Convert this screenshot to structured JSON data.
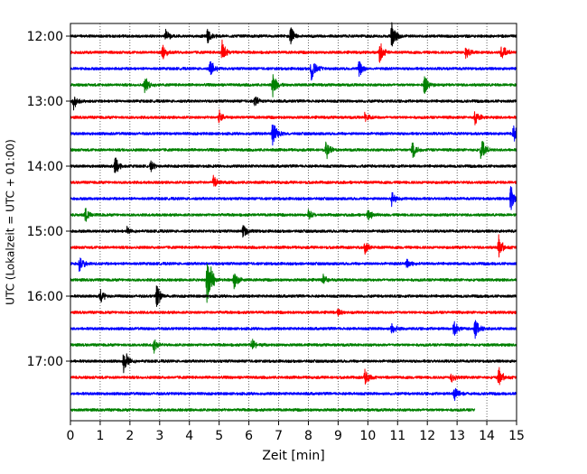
{
  "chart_data": {
    "type": "line",
    "subtype": "helicorder (seismogram drum plot)",
    "title": "",
    "xlabel": "Zeit  [min]",
    "ylabel": "UTC (Lokalzeit = UTC + 01:00)",
    "xlim": [
      0,
      15
    ],
    "x_ticks": [
      "0",
      "1",
      "2",
      "3",
      "4",
      "5",
      "6",
      "7",
      "8",
      "9",
      "10",
      "11",
      "12",
      "13",
      "14",
      "15"
    ],
    "y_tick_labels": [
      "12:00",
      "13:00",
      "14:00",
      "15:00",
      "16:00",
      "17:00"
    ],
    "trace_colors": [
      "#000000",
      "#ff0000",
      "#0000ff",
      "#008000"
    ],
    "trace_minutes": 15,
    "grid": "vertical dotted lines at each minute",
    "rows": [
      {
        "start": "12:00",
        "color": "#000000",
        "events": [
          {
            "t": 3.2,
            "a": 0.5
          },
          {
            "t": 4.6,
            "a": 0.6
          },
          {
            "t": 7.4,
            "a": 0.7
          },
          {
            "t": 10.8,
            "a": 1.0
          }
        ]
      },
      {
        "start": "12:15",
        "color": "#ff0000",
        "events": [
          {
            "t": 3.1,
            "a": 0.6
          },
          {
            "t": 5.1,
            "a": 0.9
          },
          {
            "t": 10.4,
            "a": 0.8
          },
          {
            "t": 13.3,
            "a": 0.5
          },
          {
            "t": 14.5,
            "a": 0.7
          }
        ]
      },
      {
        "start": "12:30",
        "color": "#0000ff",
        "events": [
          {
            "t": 4.7,
            "a": 0.7
          },
          {
            "t": 8.1,
            "a": 1.0
          },
          {
            "t": 9.7,
            "a": 0.7
          }
        ]
      },
      {
        "start": "12:45",
        "color": "#008000",
        "events": [
          {
            "t": 2.5,
            "a": 0.6
          },
          {
            "t": 6.8,
            "a": 0.8
          },
          {
            "t": 11.9,
            "a": 0.8
          }
        ]
      },
      {
        "start": "13:00",
        "color": "#000000",
        "events": [
          {
            "t": 0.1,
            "a": 0.6
          },
          {
            "t": 6.2,
            "a": 0.4
          }
        ]
      },
      {
        "start": "13:15",
        "color": "#ff0000",
        "events": [
          {
            "t": 5.0,
            "a": 0.5
          },
          {
            "t": 9.9,
            "a": 0.4
          },
          {
            "t": 13.6,
            "a": 0.6
          }
        ]
      },
      {
        "start": "13:30",
        "color": "#0000ff",
        "events": [
          {
            "t": 6.8,
            "a": 1.0
          },
          {
            "t": 14.9,
            "a": 0.8
          }
        ]
      },
      {
        "start": "13:45",
        "color": "#008000",
        "events": [
          {
            "t": 8.6,
            "a": 0.7
          },
          {
            "t": 11.5,
            "a": 0.7
          },
          {
            "t": 13.8,
            "a": 1.0
          }
        ]
      },
      {
        "start": "14:00",
        "color": "#000000",
        "events": [
          {
            "t": 1.5,
            "a": 0.8
          },
          {
            "t": 2.7,
            "a": 0.4
          }
        ]
      },
      {
        "start": "14:15",
        "color": "#ff0000",
        "events": [
          {
            "t": 4.8,
            "a": 0.5
          }
        ]
      },
      {
        "start": "14:30",
        "color": "#0000ff",
        "events": [
          {
            "t": 10.8,
            "a": 0.5
          },
          {
            "t": 14.8,
            "a": 1.0
          }
        ]
      },
      {
        "start": "14:45",
        "color": "#008000",
        "events": [
          {
            "t": 0.5,
            "a": 0.5
          },
          {
            "t": 8.0,
            "a": 0.4
          },
          {
            "t": 10.0,
            "a": 0.5
          }
        ]
      },
      {
        "start": "15:00",
        "color": "#000000",
        "events": [
          {
            "t": 5.8,
            "a": 0.6
          },
          {
            "t": 1.9,
            "a": 0.3
          }
        ]
      },
      {
        "start": "15:15",
        "color": "#ff0000",
        "events": [
          {
            "t": 9.9,
            "a": 0.5
          },
          {
            "t": 14.4,
            "a": 0.8
          }
        ]
      },
      {
        "start": "15:30",
        "color": "#0000ff",
        "events": [
          {
            "t": 0.3,
            "a": 0.6
          },
          {
            "t": 11.3,
            "a": 0.4
          }
        ]
      },
      {
        "start": "15:45",
        "color": "#008000",
        "events": [
          {
            "t": 4.6,
            "a": 2.4
          },
          {
            "t": 5.5,
            "a": 0.7
          },
          {
            "t": 8.5,
            "a": 0.4
          }
        ]
      },
      {
        "start": "16:00",
        "color": "#000000",
        "events": [
          {
            "t": 1.0,
            "a": 0.6
          },
          {
            "t": 2.9,
            "a": 0.8
          }
        ]
      },
      {
        "start": "16:15",
        "color": "#ff0000",
        "events": [
          {
            "t": 9.0,
            "a": 0.3
          }
        ]
      },
      {
        "start": "16:30",
        "color": "#0000ff",
        "events": [
          {
            "t": 10.8,
            "a": 0.5
          },
          {
            "t": 12.9,
            "a": 0.6
          },
          {
            "t": 13.6,
            "a": 0.8
          }
        ]
      },
      {
        "start": "16:45",
        "color": "#008000",
        "events": [
          {
            "t": 2.8,
            "a": 0.6
          },
          {
            "t": 6.1,
            "a": 0.5
          }
        ]
      },
      {
        "start": "17:00",
        "color": "#000000",
        "events": [
          {
            "t": 1.8,
            "a": 1.0
          }
        ]
      },
      {
        "start": "17:15",
        "color": "#ff0000",
        "events": [
          {
            "t": 9.9,
            "a": 0.6
          },
          {
            "t": 12.8,
            "a": 0.4
          },
          {
            "t": 14.4,
            "a": 0.7
          }
        ]
      },
      {
        "start": "17:30",
        "color": "#0000ff",
        "events": [
          {
            "t": 12.9,
            "a": 0.6
          }
        ]
      },
      {
        "start": "17:45",
        "color": "#008000",
        "events": [],
        "end_minute": 13.6
      }
    ]
  }
}
